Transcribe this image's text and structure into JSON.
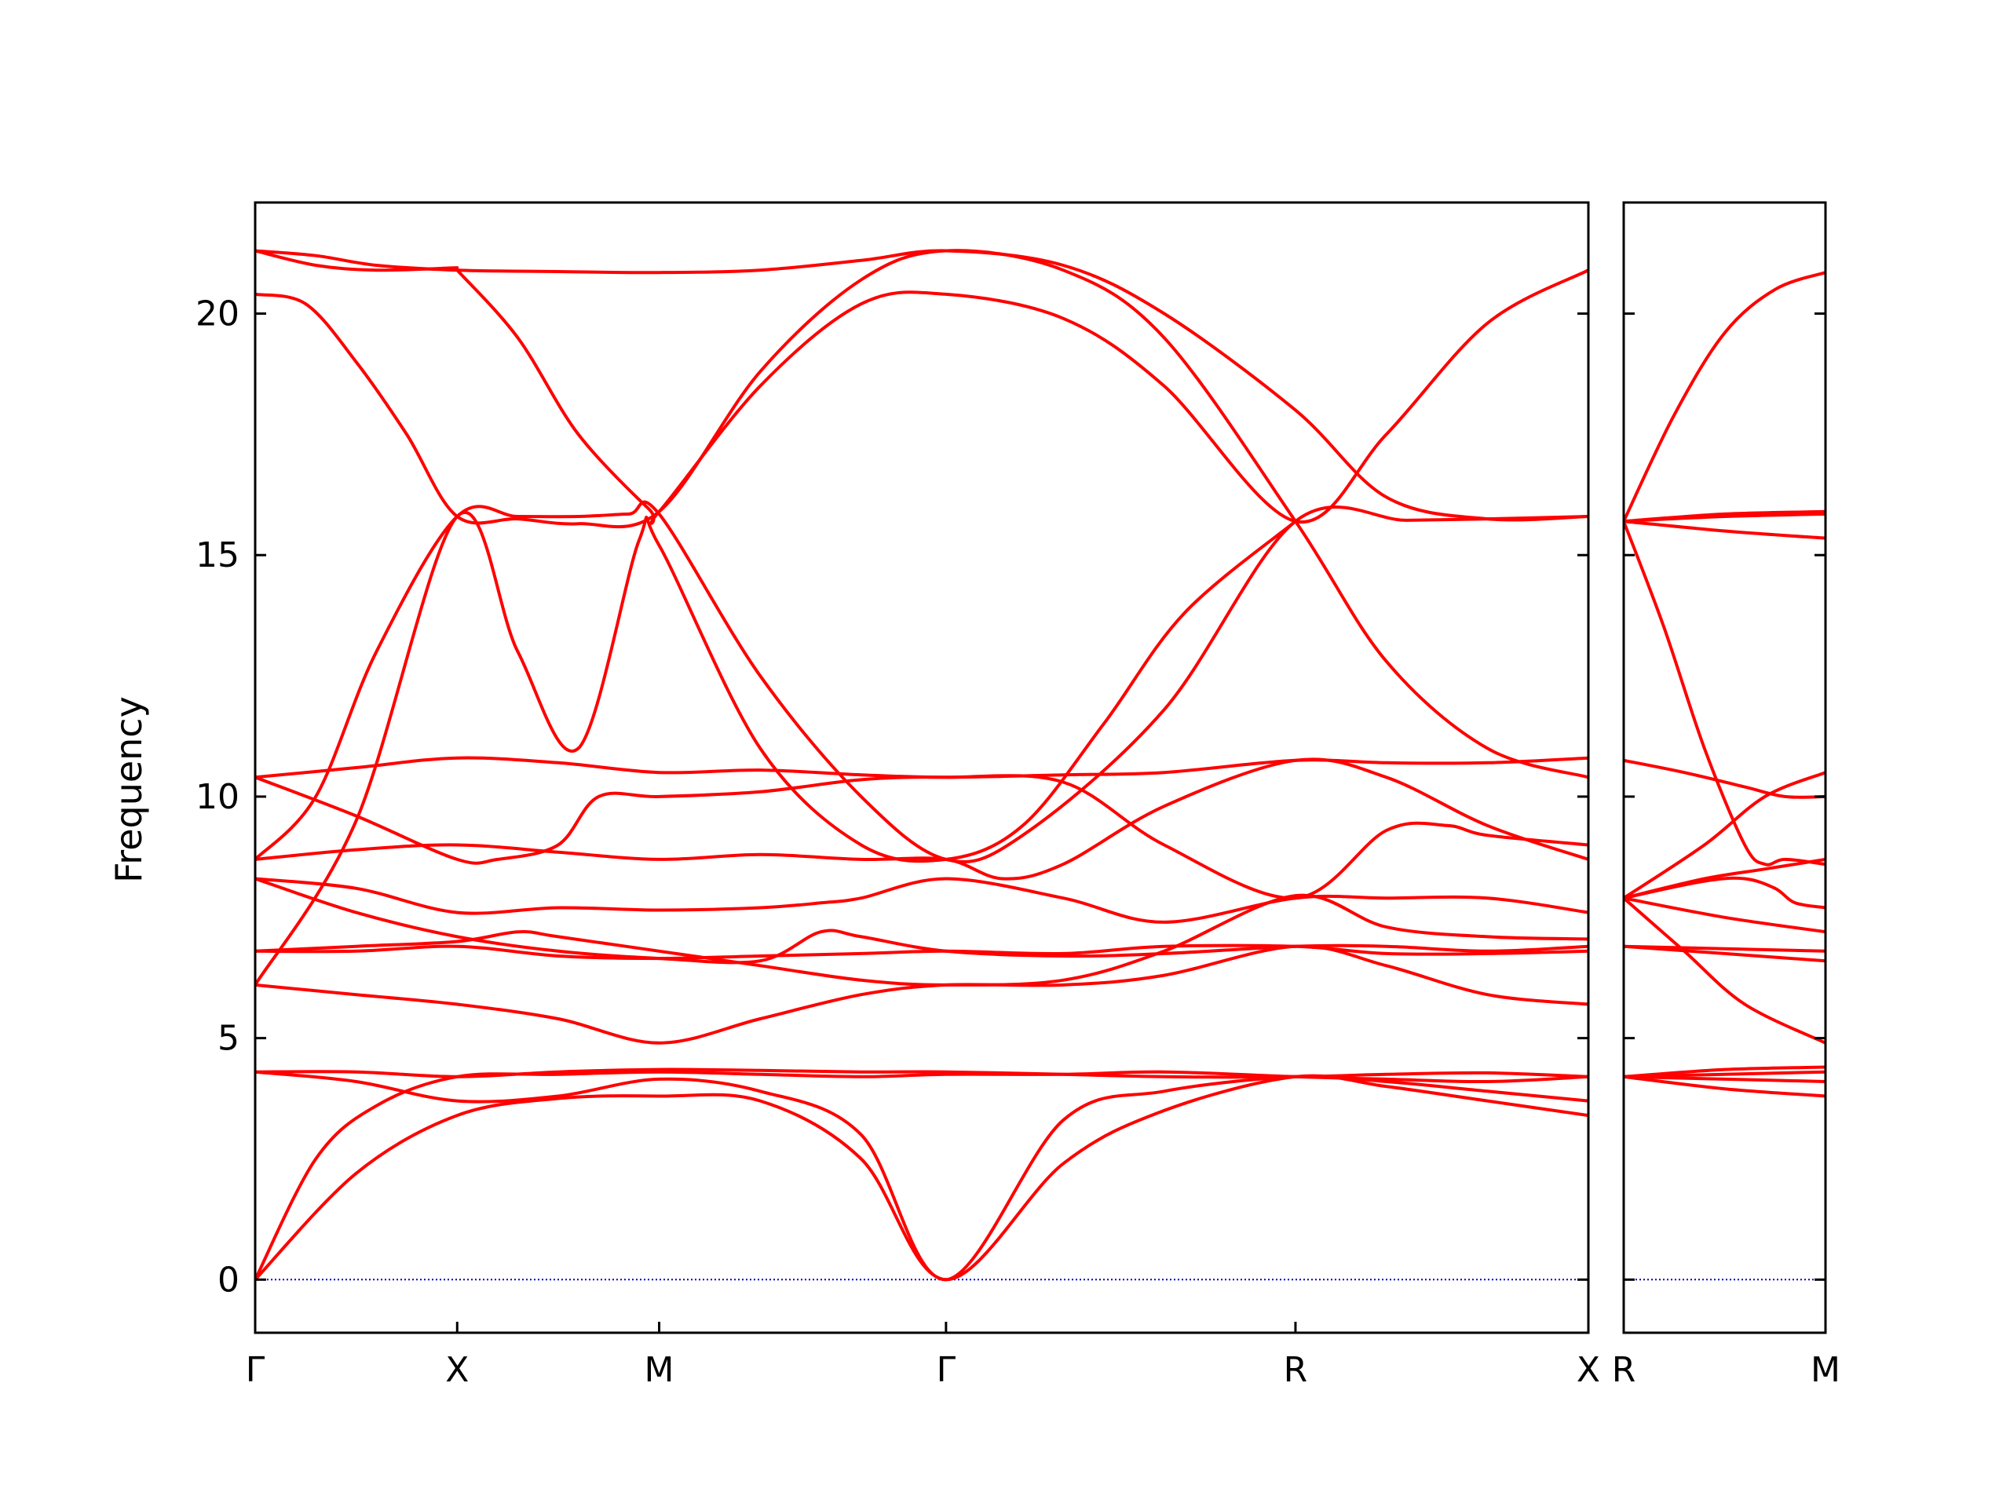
{
  "chart_data": {
    "type": "line",
    "title": "",
    "ylabel": "Frequency",
    "xlabel": "",
    "ylim": [
      -1.1,
      22.3
    ],
    "yticks": [
      0,
      5,
      10,
      15,
      20
    ],
    "line_color": "#ff0000",
    "zero_line_color": "#0000cc",
    "grid": false,
    "panels": [
      {
        "name": "main",
        "xlim": [
          0,
          6.6
        ],
        "ticks": [
          {
            "x": 0,
            "label": "Γ"
          },
          {
            "x": 1,
            "label": "X"
          },
          {
            "x": 2,
            "label": "M"
          },
          {
            "x": 3.42,
            "label": "Γ"
          },
          {
            "x": 5.15,
            "label": "R"
          },
          {
            "x": 6.6,
            "label": "X"
          }
        ],
        "series": [
          {
            "x": [
              0,
              0.3,
              0.6,
              1,
              1.5,
              2,
              2.5,
              3,
              3.42,
              4,
              4.5,
              5.15,
              5.6,
              6.1,
              6.6
            ],
            "y": [
              21.3,
              21.2,
              21.0,
              20.9,
              20.87,
              20.85,
              20.9,
              21.1,
              21.3,
              21.0,
              20.0,
              18.0,
              16.2,
              15.75,
              15.8
            ]
          },
          {
            "x": [
              0,
              0.3,
              0.6,
              1
            ],
            "y": [
              21.3,
              21.0,
              20.9,
              20.95
            ]
          },
          {
            "x": [
              0,
              0.25,
              0.5,
              0.75,
              1,
              1.3,
              1.6,
              2,
              2.5,
              3,
              3.42,
              4,
              4.5,
              5.15,
              5.6,
              6.1,
              6.6
            ],
            "y": [
              20.4,
              20.2,
              19.0,
              17.5,
              15.8,
              15.75,
              15.65,
              15.9,
              18.8,
              20.7,
              21.3,
              20.9,
              19.5,
              15.7,
              12.8,
              11.0,
              10.4
            ]
          },
          {
            "x": [
              1,
              1.3,
              1.6,
              1.95,
              2,
              2.5,
              3,
              3.42,
              4,
              4.5,
              5.15,
              5.6,
              6.1,
              6.6
            ],
            "y": [
              20.9,
              19.5,
              17.5,
              15.95,
              15.9,
              18.5,
              20.2,
              20.4,
              19.9,
              18.5,
              15.7,
              17.5,
              19.8,
              20.9
            ]
          },
          {
            "x": [
              0,
              0.3,
              0.6,
              1,
              1.3,
              1.6,
              1.85,
              2,
              2.5,
              3,
              3.42,
              3.8,
              4.5,
              5.15,
              5.7,
              6.1,
              6.6
            ],
            "y": [
              8.7,
              10.0,
              13.0,
              15.8,
              15.8,
              15.8,
              15.85,
              15.85,
              12.5,
              10.0,
              8.7,
              9.2,
              11.8,
              15.7,
              15.72,
              15.75,
              15.8
            ]
          },
          {
            "x": [
              0,
              0.5,
              1,
              1.3,
              1.6,
              1.9,
              2,
              2.5,
              3,
              3.42,
              3.8,
              4.2,
              4.6,
              5.15
            ],
            "y": [
              6.1,
              9.5,
              15.8,
              13.0,
              11.0,
              15.3,
              15.2,
              11.0,
              9.0,
              8.7,
              9.4,
              11.5,
              13.8,
              15.7
            ]
          },
          {
            "x": [
              0,
              0.5,
              1,
              1.5,
              2,
              2.5,
              3,
              3.42,
              4,
              4.5,
              5.15,
              5.6,
              6.1,
              6.6
            ],
            "y": [
              10.4,
              10.6,
              10.8,
              10.7,
              10.5,
              10.55,
              10.45,
              10.4,
              10.45,
              10.5,
              10.75,
              10.7,
              10.7,
              10.8
            ]
          },
          {
            "x": [
              0,
              0.5,
              1,
              1.2,
              1.5,
              1.7,
              2,
              2.5,
              3,
              3.42,
              4,
              4.5,
              5.15,
              5.6,
              5.9,
              6.1,
              6.6
            ],
            "y": [
              10.4,
              9.6,
              8.7,
              8.7,
              9.0,
              10.0,
              10.0,
              10.1,
              10.35,
              10.4,
              10.3,
              9.0,
              7.9,
              9.3,
              9.4,
              9.2,
              9.0
            ]
          },
          {
            "x": [
              0,
              0.5,
              1,
              1.5,
              2,
              2.5,
              3,
              3.42,
              3.7,
              4,
              4.5,
              5.15,
              5.6,
              6.1,
              6.6
            ],
            "y": [
              8.7,
              8.9,
              9.0,
              8.85,
              8.7,
              8.8,
              8.7,
              8.7,
              8.3,
              8.6,
              9.8,
              10.75,
              10.4,
              9.4,
              8.7
            ]
          },
          {
            "x": [
              0,
              0.5,
              1,
              1.5,
              2,
              2.5,
              2.8,
              3,
              3.42,
              4,
              4.5,
              5.15,
              5.6,
              6.1,
              6.6
            ],
            "y": [
              8.3,
              8.1,
              7.6,
              7.7,
              7.65,
              7.7,
              7.8,
              7.9,
              8.3,
              7.9,
              7.4,
              7.9,
              7.9,
              7.9,
              7.6
            ]
          },
          {
            "x": [
              0,
              0.5,
              1,
              1.5,
              2,
              2.5,
              2.8,
              3,
              3.42,
              4,
              4.5,
              5.15,
              5.6,
              6.1,
              6.6
            ],
            "y": [
              8.3,
              7.6,
              7.1,
              6.8,
              6.65,
              6.6,
              7.2,
              7.1,
              6.8,
              6.7,
              6.75,
              6.9,
              6.9,
              6.8,
              6.9
            ]
          },
          {
            "x": [
              0,
              0.5,
              1,
              1.3,
              1.5,
              2,
              2.5,
              3,
              3.42,
              4,
              4.5,
              5.15,
              5.6,
              6.1,
              6.6
            ],
            "y": [
              6.8,
              6.9,
              7.0,
              7.2,
              7.1,
              6.8,
              6.5,
              6.2,
              6.1,
              6.2,
              6.8,
              7.95,
              7.3,
              7.1,
              7.05
            ]
          },
          {
            "x": [
              0,
              0.5,
              1,
              1.5,
              2,
              2.5,
              3,
              3.42,
              4,
              4.5,
              5.15,
              5.6,
              6.1,
              6.6
            ],
            "y": [
              6.8,
              6.8,
              6.9,
              6.7,
              6.65,
              6.7,
              6.75,
              6.8,
              6.75,
              6.9,
              6.9,
              6.75,
              6.75,
              6.8
            ]
          },
          {
            "x": [
              0,
              0.5,
              1,
              1.5,
              2,
              2.5,
              3,
              3.42,
              4,
              4.5,
              5.15,
              5.6,
              6.1,
              6.6
            ],
            "y": [
              6.1,
              5.9,
              5.7,
              5.4,
              4.9,
              5.4,
              5.9,
              6.1,
              6.1,
              6.3,
              6.9,
              6.5,
              5.9,
              5.7
            ]
          },
          {
            "x": [
              0,
              0.5,
              1,
              1.5,
              2,
              2.5,
              3,
              3.42,
              4,
              4.5,
              5.15,
              5.6,
              6.1,
              6.6
            ],
            "y": [
              4.3,
              4.3,
              4.2,
              4.3,
              4.35,
              4.33,
              4.3,
              4.3,
              4.25,
              4.2,
              4.2,
              4.25,
              4.28,
              4.2
            ]
          },
          {
            "x": [
              0,
              0.5,
              1,
              1.5,
              2,
              2.5,
              3,
              3.42,
              4,
              4.5,
              5.15,
              5.6,
              6.1,
              6.6
            ],
            "y": [
              4.3,
              4.1,
              3.7,
              3.8,
              4.15,
              3.9,
              3.0,
              0,
              3.3,
              3.9,
              4.2,
              4.1,
              3.9,
              3.7
            ]
          },
          {
            "x": [
              0,
              0.3,
              0.6,
              1,
              1.5,
              2,
              2.5,
              3,
              3.42,
              4,
              4.5,
              5.15,
              5.6,
              6.1,
              6.6
            ],
            "y": [
              0,
              2.5,
              3.6,
              4.2,
              4.25,
              4.3,
              4.25,
              4.2,
              4.25,
              4.25,
              4.3,
              4.2,
              4.15,
              4.1,
              4.2
            ]
          },
          {
            "x": [
              0,
              0.5,
              1,
              1.5,
              2,
              2.5,
              3,
              3.42,
              4,
              4.5,
              5.15,
              5.6,
              6.1,
              6.6
            ],
            "y": [
              0,
              2.2,
              3.4,
              3.75,
              3.8,
              3.7,
              2.5,
              0,
              2.4,
              3.5,
              4.2,
              4.0,
              3.7,
              3.4
            ]
          }
        ]
      },
      {
        "name": "side",
        "xlim": [
          0,
          1
        ],
        "ticks": [
          {
            "x": 0,
            "label": "R"
          },
          {
            "x": 1,
            "label": "M"
          }
        ],
        "series": [
          {
            "x": [
              0,
              0.25,
              0.5,
              0.75,
              1
            ],
            "y": [
              15.7,
              17.9,
              19.6,
              20.5,
              20.85
            ]
          },
          {
            "x": [
              0,
              0.5,
              1
            ],
            "y": [
              15.7,
              15.85,
              15.9
            ]
          },
          {
            "x": [
              0,
              0.5,
              1
            ],
            "y": [
              15.7,
              15.8,
              15.85
            ]
          },
          {
            "x": [
              0,
              0.5,
              1
            ],
            "y": [
              15.7,
              15.5,
              15.35
            ]
          },
          {
            "x": [
              0,
              0.2,
              0.4,
              0.6,
              0.7,
              0.8,
              1
            ],
            "y": [
              15.7,
              13.5,
              11.0,
              9.0,
              8.6,
              8.7,
              8.6
            ]
          },
          {
            "x": [
              0,
              0.3,
              0.6,
              0.8,
              1
            ],
            "y": [
              10.75,
              10.5,
              10.2,
              10.0,
              10.0
            ]
          },
          {
            "x": [
              0,
              0.4,
              0.7,
              1
            ],
            "y": [
              7.9,
              9.0,
              10.0,
              10.5
            ]
          },
          {
            "x": [
              0,
              0.4,
              0.7,
              1
            ],
            "y": [
              7.9,
              8.3,
              8.5,
              8.7
            ]
          },
          {
            "x": [
              0,
              0.4,
              0.6,
              0.75,
              0.85,
              1
            ],
            "y": [
              7.9,
              8.25,
              8.3,
              8.1,
              7.8,
              7.7
            ]
          },
          {
            "x": [
              0,
              0.5,
              1
            ],
            "y": [
              7.9,
              7.5,
              7.2
            ]
          },
          {
            "x": [
              0,
              0.3,
              0.6,
              1
            ],
            "y": [
              7.9,
              6.8,
              5.7,
              4.9
            ]
          },
          {
            "x": [
              0,
              0.5,
              1
            ],
            "y": [
              6.9,
              6.85,
              6.8
            ]
          },
          {
            "x": [
              0,
              0.5,
              1
            ],
            "y": [
              6.9,
              6.75,
              6.6
            ]
          },
          {
            "x": [
              0,
              0.5,
              1
            ],
            "y": [
              4.2,
              4.35,
              4.4
            ]
          },
          {
            "x": [
              0,
              0.5,
              1
            ],
            "y": [
              4.2,
              4.25,
              4.3
            ]
          },
          {
            "x": [
              0,
              0.5,
              1
            ],
            "y": [
              4.2,
              4.15,
              4.1
            ]
          },
          {
            "x": [
              0,
              0.5,
              1
            ],
            "y": [
              4.2,
              3.95,
              3.8
            ]
          }
        ]
      }
    ]
  }
}
